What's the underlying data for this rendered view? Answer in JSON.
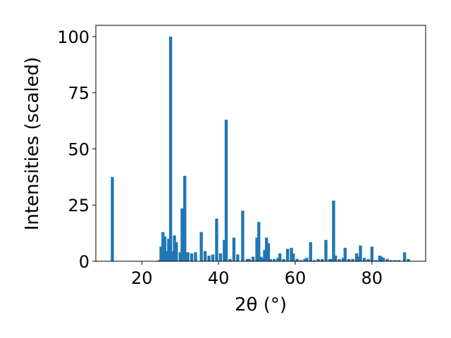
{
  "chart_data": {
    "type": "bar",
    "xlabel": "2θ (°)",
    "ylabel": "Intensities (scaled)",
    "xlim": [
      8,
      94
    ],
    "ylim": [
      0,
      105
    ],
    "x_ticks": [
      20,
      40,
      60,
      80
    ],
    "y_ticks": [
      0,
      25,
      50,
      75,
      100
    ],
    "grid": false,
    "bar_color": "#1f77b4",
    "bar_width": 0.8,
    "x": [
      12.3,
      24.5,
      25.0,
      25.5,
      26.0,
      26.5,
      27.0,
      27.5,
      28.0,
      28.5,
      29.0,
      30.0,
      30.5,
      31.2,
      32.0,
      33.0,
      34.0,
      35.5,
      36.5,
      37.5,
      38.5,
      39.5,
      40.5,
      41.5,
      42.0,
      43.0,
      44.0,
      45.0,
      46.3,
      47.5,
      48.0,
      49.0,
      50.0,
      50.5,
      51.0,
      51.5,
      52.0,
      52.5,
      53.0,
      53.5,
      54.5,
      55.5,
      56.0,
      57.0,
      58.0,
      59.0,
      59.5,
      60.5,
      61.5,
      62.5,
      63.0,
      64.0,
      65.0,
      66.0,
      67.0,
      68.0,
      69.0,
      69.5,
      70.0,
      70.5,
      71.5,
      72.5,
      73.0,
      74.0,
      75.0,
      76.0,
      76.5,
      77.0,
      78.0,
      79.0,
      80.0,
      81.0,
      82.0,
      82.5,
      83.0,
      84.0,
      85.0,
      86.0,
      87.0,
      88.5,
      89.5
    ],
    "values": [
      37.5,
      0.5,
      6.5,
      13.0,
      11.0,
      4.5,
      10.0,
      100.0,
      4.5,
      11.5,
      8.5,
      4.0,
      23.5,
      38.0,
      4.0,
      3.5,
      4.0,
      13.0,
      4.5,
      2.5,
      3.0,
      19.0,
      3.5,
      9.5,
      63.0,
      1.0,
      10.5,
      3.0,
      22.5,
      1.0,
      1.0,
      2.0,
      10.5,
      17.5,
      2.0,
      1.5,
      5.0,
      10.5,
      8.0,
      1.0,
      1.0,
      1.5,
      3.5,
      1.0,
      5.5,
      6.0,
      3.5,
      1.0,
      0.5,
      1.0,
      1.5,
      8.5,
      0.5,
      1.0,
      1.0,
      9.5,
      1.0,
      1.0,
      27.0,
      2.5,
      1.0,
      1.5,
      6.0,
      1.0,
      1.0,
      3.5,
      2.0,
      7.0,
      1.5,
      1.0,
      6.5,
      0.5,
      2.5,
      2.0,
      1.5,
      1.0,
      0.5,
      0.5,
      0.5,
      4.0,
      1.0
    ]
  }
}
